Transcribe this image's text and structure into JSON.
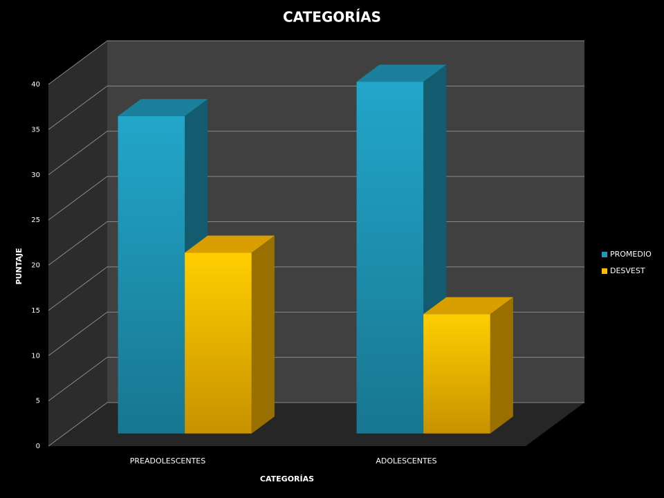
{
  "chart_data": {
    "type": "bar3d",
    "title": "CATEGORÍAS",
    "x_label": "CATEGORÍAS",
    "y_label": "PUNTAJE",
    "categories": [
      "PREADOLESCENTES",
      "ADOLESCENTES"
    ],
    "series": [
      {
        "name": "PROMEDIO",
        "color": "#1f97b8",
        "values": [
          35.1,
          38.9
        ]
      },
      {
        "name": "DESVEST",
        "color": "#ffbb00",
        "values": [
          20.0,
          13.2
        ]
      }
    ],
    "ylim": [
      0,
      40
    ],
    "yticks": [
      0,
      5,
      10,
      15,
      20,
      25,
      30,
      35,
      40
    ],
    "grid": true,
    "legend": "right"
  }
}
